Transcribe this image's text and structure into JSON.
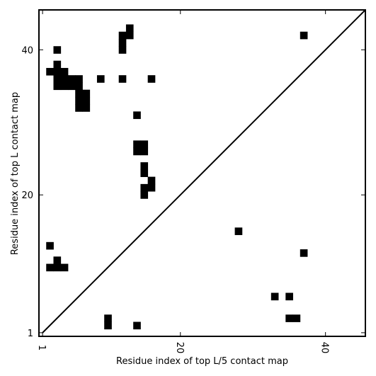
{
  "chart_data": {
    "type": "heatmap",
    "xlabel": "Residue index of top L/5 contact map",
    "ylabel": "Residue index of top L contact map",
    "xlim": [
      0.5,
      45.5
    ],
    "ylim": [
      0.5,
      45.5
    ],
    "x_ticks": [
      1,
      20,
      40
    ],
    "y_ticks": [
      1,
      20,
      40
    ],
    "diagonal": [
      [
        1,
        1
      ],
      [
        45.5,
        45.5
      ]
    ],
    "cell_color": "#000000",
    "cells": [
      [
        2,
        37
      ],
      [
        3,
        37
      ],
      [
        3,
        38
      ],
      [
        3,
        40
      ],
      [
        4,
        37
      ],
      [
        3,
        35
      ],
      [
        3,
        36
      ],
      [
        4,
        35
      ],
      [
        4,
        36
      ],
      [
        5,
        35
      ],
      [
        5,
        36
      ],
      [
        6,
        35
      ],
      [
        6,
        36
      ],
      [
        6,
        32
      ],
      [
        6,
        33
      ],
      [
        6,
        34
      ],
      [
        7,
        32
      ],
      [
        7,
        33
      ],
      [
        7,
        34
      ],
      [
        9,
        36
      ],
      [
        12,
        36
      ],
      [
        16,
        36
      ],
      [
        12,
        40
      ],
      [
        12,
        41
      ],
      [
        12,
        42
      ],
      [
        13,
        42
      ],
      [
        13,
        43
      ],
      [
        14,
        31
      ],
      [
        14,
        26
      ],
      [
        14,
        27
      ],
      [
        15,
        26
      ],
      [
        15,
        27
      ],
      [
        15,
        23
      ],
      [
        15,
        24
      ],
      [
        16,
        22
      ],
      [
        15,
        20
      ],
      [
        15,
        21
      ],
      [
        16,
        21
      ],
      [
        2,
        13
      ],
      [
        2,
        10
      ],
      [
        3,
        10
      ],
      [
        3,
        11
      ],
      [
        4,
        10
      ],
      [
        28,
        15
      ],
      [
        37,
        12
      ],
      [
        37,
        42
      ],
      [
        33,
        6
      ],
      [
        35,
        6
      ],
      [
        35,
        3
      ],
      [
        36,
        3
      ],
      [
        10,
        2
      ],
      [
        10,
        3
      ],
      [
        14,
        2
      ]
    ]
  }
}
